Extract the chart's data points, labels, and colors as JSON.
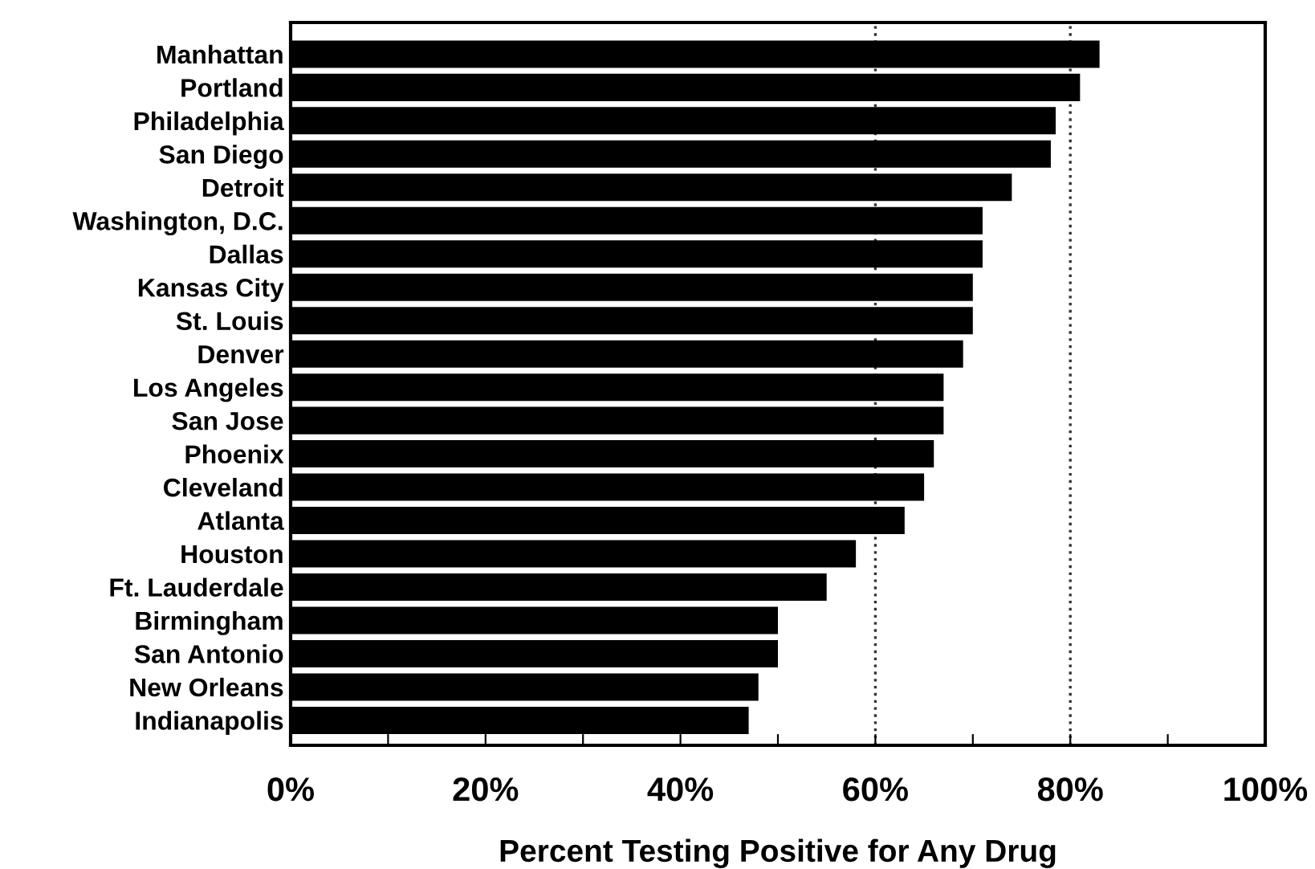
{
  "chart_data": {
    "type": "bar",
    "orientation": "horizontal",
    "xlabel": "Percent Testing Positive for Any Drug",
    "categories": [
      "Manhattan",
      "Portland",
      "Philadelphia",
      "San Diego",
      "Detroit",
      "Washington, D.C.",
      "Dallas",
      "Kansas City",
      "St. Louis",
      "Denver",
      "Los Angeles",
      "San Jose",
      "Phoenix",
      "Cleveland",
      "Atlanta",
      "Houston",
      "Ft. Lauderdale",
      "Birmingham",
      "San Antonio",
      "New Orleans",
      "Indianapolis"
    ],
    "values": [
      83,
      81,
      78.5,
      78,
      74,
      71,
      71,
      70,
      70,
      69,
      67,
      67,
      66,
      65,
      63,
      58,
      55,
      50,
      50,
      48,
      47
    ],
    "color": "#000000",
    "xlim": [
      0,
      100
    ],
    "xticks": [
      {
        "value": 0,
        "label": "0%"
      },
      {
        "value": 10,
        "label": null
      },
      {
        "value": 20,
        "label": "20%"
      },
      {
        "value": 30,
        "label": null
      },
      {
        "value": 40,
        "label": "40%"
      },
      {
        "value": 50,
        "label": null
      },
      {
        "value": 60,
        "label": "60%"
      },
      {
        "value": 70,
        "label": null
      },
      {
        "value": 80,
        "label": "80%"
      },
      {
        "value": 90,
        "label": null
      },
      {
        "value": 100,
        "label": "100%"
      }
    ],
    "ref_lines": [
      {
        "axis": "x",
        "value": 60,
        "color": "#333333",
        "line_style": "dotted"
      },
      {
        "axis": "x",
        "value": 80,
        "color": "#333333",
        "line_style": "dotted"
      }
    ],
    "grid": false,
    "legend": false
  }
}
